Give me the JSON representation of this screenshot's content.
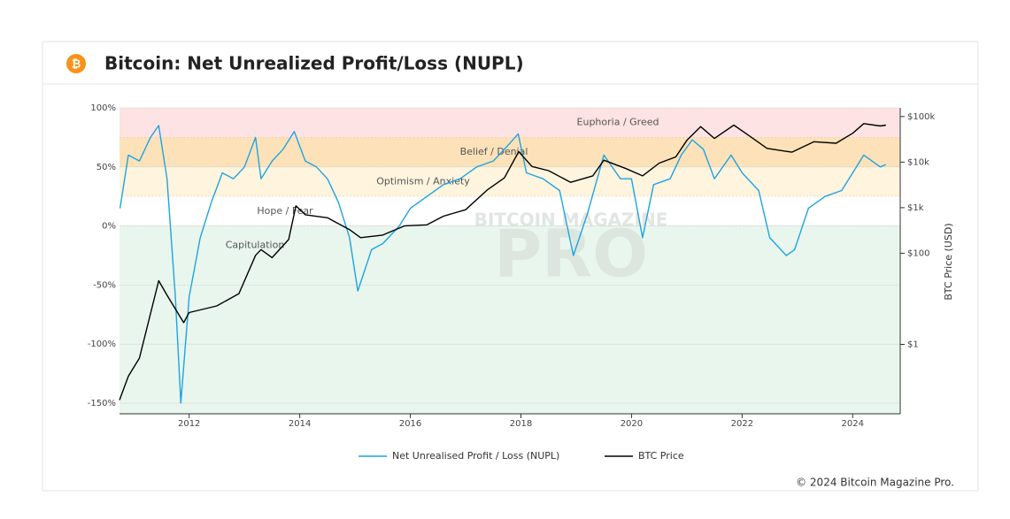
{
  "chart_data": {
    "type": "line",
    "logo": "₿",
    "title": "Bitcoin: Net Unrealized Profit/Loss (NUPL)",
    "y2label": "BTC Price (USD)",
    "copyright": "© 2024 Bitcoin Magazine Pro.",
    "watermark": {
      "top": "BITCOIN MAGAZINE",
      "main": "PRO"
    },
    "xlim": [
      2010.74,
      2024.86
    ],
    "xticks": [
      2012,
      2014,
      2016,
      2018,
      2020,
      2022,
      2024
    ],
    "ylim": [
      -159,
      100
    ],
    "yticks": [
      {
        "value": -150,
        "label": "-150%"
      },
      {
        "value": -100,
        "label": "-100%"
      },
      {
        "value": -50,
        "label": "-50%"
      },
      {
        "value": 0,
        "label": "0%"
      },
      {
        "value": 50,
        "label": "50%"
      },
      {
        "value": 100,
        "label": "100%"
      }
    ],
    "y2lim": [
      0.03,
      155000
    ],
    "y2log": true,
    "y2ticks": [
      {
        "value": 1,
        "label": "$1"
      },
      {
        "value": 100,
        "label": "$100"
      },
      {
        "value": 1000,
        "label": "$1k"
      },
      {
        "value": 10000,
        "label": "$10k"
      },
      {
        "value": 100000,
        "label": "$100k"
      }
    ],
    "zones": [
      {
        "label": "Euphoria / Greed",
        "from": 75,
        "to": 100,
        "color": "#fde3e3"
      },
      {
        "label": "Belief / Denial",
        "from": 50,
        "to": 75,
        "color": "#fde2b9"
      },
      {
        "label": "Optimism / Anxiety",
        "from": 25,
        "to": 50,
        "color": "#fff4de"
      },
      {
        "label": "Hope / Fear",
        "from": 0,
        "to": 25,
        "color": "#ffffff"
      },
      {
        "label": "Capitulation",
        "from": -159,
        "to": 0,
        "color": "#e9f6ee"
      }
    ],
    "series": [
      {
        "name": "Net Unrealised Profit / Loss (NUPL)",
        "color": "#1ea4e0",
        "x": [
          2010.75,
          2010.9,
          2011.1,
          2011.3,
          2011.45,
          2011.6,
          2011.75,
          2011.85,
          2012.0,
          2012.2,
          2012.4,
          2012.6,
          2012.8,
          2013.0,
          2013.2,
          2013.3,
          2013.5,
          2013.7,
          2013.9,
          2014.1,
          2014.3,
          2014.5,
          2014.7,
          2014.9,
          2015.05,
          2015.3,
          2015.5,
          2015.8,
          2016.0,
          2016.3,
          2016.6,
          2016.9,
          2017.2,
          2017.5,
          2017.8,
          2017.95,
          2018.1,
          2018.4,
          2018.7,
          2018.95,
          2019.2,
          2019.5,
          2019.8,
          2020.0,
          2020.2,
          2020.4,
          2020.7,
          2020.9,
          2021.1,
          2021.3,
          2021.5,
          2021.8,
          2022.0,
          2022.3,
          2022.5,
          2022.8,
          2022.95,
          2023.2,
          2023.5,
          2023.8,
          2024.0,
          2024.2,
          2024.5,
          2024.6
        ],
        "values": [
          15,
          60,
          55,
          75,
          85,
          40,
          -60,
          -150,
          -60,
          -10,
          20,
          45,
          40,
          50,
          75,
          40,
          55,
          65,
          80,
          55,
          50,
          40,
          20,
          -10,
          -55,
          -20,
          -15,
          0,
          15,
          25,
          35,
          40,
          50,
          55,
          70,
          78,
          45,
          40,
          30,
          -25,
          10,
          60,
          40,
          40,
          -10,
          35,
          40,
          60,
          73,
          65,
          40,
          60,
          45,
          30,
          -10,
          -25,
          -20,
          15,
          25,
          30,
          45,
          60,
          50,
          52
        ]
      },
      {
        "name": "BTC Price",
        "color": "#000000",
        "axis": "y2",
        "x": [
          2010.74,
          2010.9,
          2011.1,
          2011.45,
          2011.6,
          2011.9,
          2012.0,
          2012.5,
          2012.9,
          2013.2,
          2013.3,
          2013.5,
          2013.8,
          2013.93,
          2014.1,
          2014.5,
          2014.9,
          2015.1,
          2015.5,
          2015.9,
          2016.3,
          2016.6,
          2017.0,
          2017.4,
          2017.7,
          2017.96,
          2018.2,
          2018.5,
          2018.9,
          2019.3,
          2019.5,
          2019.9,
          2020.2,
          2020.5,
          2020.8,
          2021.0,
          2021.25,
          2021.5,
          2021.85,
          2022.1,
          2022.45,
          2022.9,
          2023.3,
          2023.7,
          2024.0,
          2024.2,
          2024.5,
          2024.6
        ],
        "values": [
          0.06,
          0.2,
          0.5,
          25,
          12,
          3,
          5,
          7,
          13,
          90,
          120,
          80,
          200,
          1100,
          700,
          600,
          330,
          220,
          250,
          400,
          420,
          650,
          900,
          2500,
          4500,
          17000,
          8000,
          6500,
          3600,
          5000,
          11000,
          7200,
          5000,
          9500,
          13000,
          30000,
          60000,
          33000,
          65000,
          40000,
          20000,
          16500,
          28000,
          26000,
          43000,
          70000,
          62000,
          65000
        ]
      }
    ]
  }
}
